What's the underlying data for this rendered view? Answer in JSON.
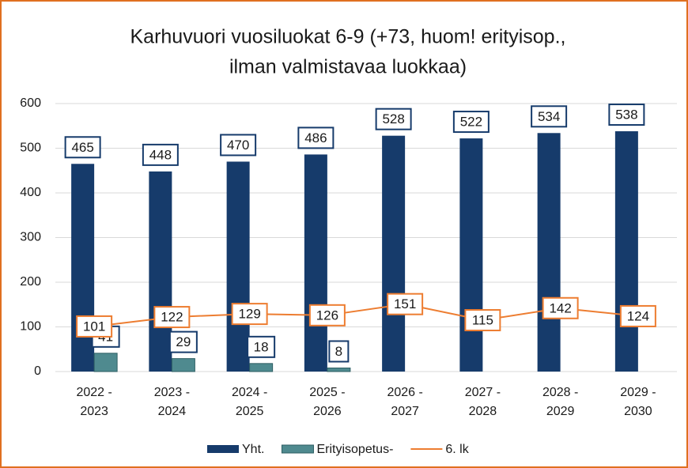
{
  "chart_data": {
    "type": "bar",
    "title": [
      "Karhuvuori vuosiluokat 6-9 (+73, huom! erityisop.,",
      "ilman valmistavaa luokkaa)"
    ],
    "categories": [
      [
        "2022 -",
        "2023"
      ],
      [
        "2023 -",
        "2024"
      ],
      [
        "2024 -",
        "2025"
      ],
      [
        "2025 -",
        "2026"
      ],
      [
        "2026 -",
        "2027"
      ],
      [
        "2027 -",
        "2028"
      ],
      [
        "2028 -",
        "2029"
      ],
      [
        "2029 -",
        "2030"
      ]
    ],
    "series": [
      {
        "name": "Yht.",
        "type": "bar",
        "color": "#163b6b",
        "values": [
          465,
          448,
          470,
          486,
          528,
          522,
          534,
          538
        ]
      },
      {
        "name": "Erityisopetus-",
        "type": "bar",
        "color": "#4f8a8f",
        "values": [
          41,
          29,
          18,
          8,
          null,
          null,
          null,
          null
        ]
      },
      {
        "name": "6. lk",
        "type": "line",
        "color": "#ed7d31",
        "values": [
          101,
          122,
          129,
          126,
          151,
          115,
          142,
          124
        ]
      }
    ],
    "ylim": [
      0,
      600
    ],
    "yticks": [
      0,
      100,
      200,
      300,
      400,
      500,
      600
    ],
    "grid": true,
    "legend": "bottom"
  }
}
